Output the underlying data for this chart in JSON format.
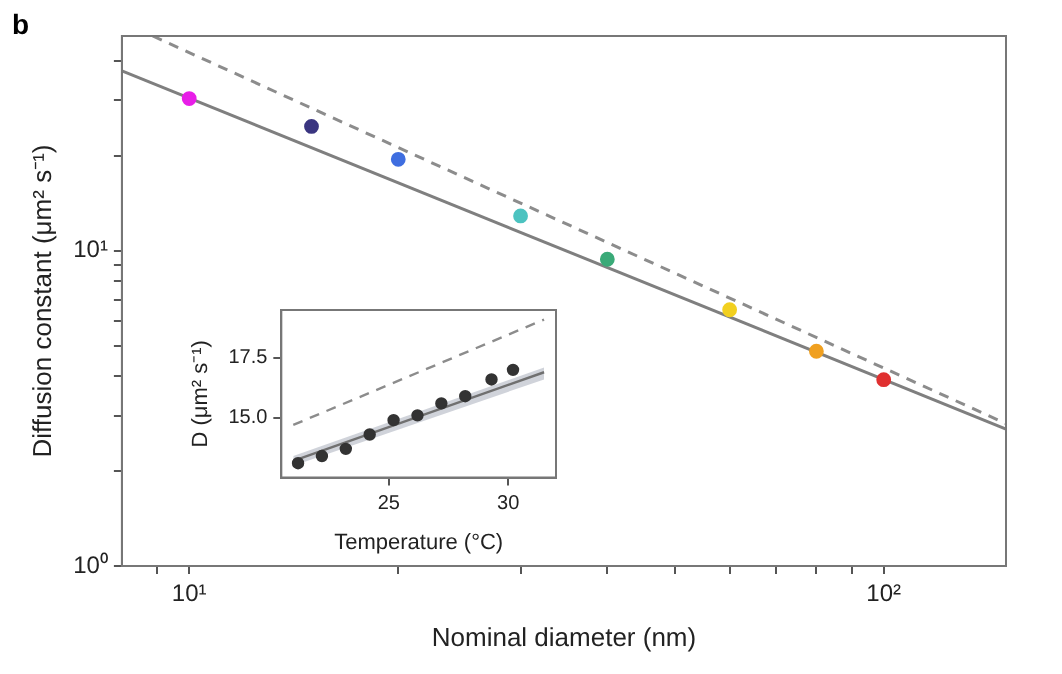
{
  "chart_data": [
    {
      "type": "scatter",
      "annotations": [
        "b"
      ],
      "xlabel": "Nominal diameter (nm)",
      "ylabel": "Diffusion constant (μm² s⁻¹)",
      "log": "xy",
      "xlim": [
        8,
        150
      ],
      "ylim": [
        1,
        48
      ],
      "xticks": [
        {
          "value": 9,
          "label": null
        },
        {
          "value": 10,
          "label": "10¹"
        },
        {
          "value": 20,
          "label": null
        },
        {
          "value": 30,
          "label": null
        },
        {
          "value": 40,
          "label": null
        },
        {
          "value": 50,
          "label": null
        },
        {
          "value": 60,
          "label": null
        },
        {
          "value": 70,
          "label": null
        },
        {
          "value": 80,
          "label": null
        },
        {
          "value": 90,
          "label": null
        },
        {
          "value": 100,
          "label": "10²"
        }
      ],
      "yticks": [
        {
          "value": 1,
          "label": "10⁰"
        },
        {
          "value": 2,
          "label": null
        },
        {
          "value": 3,
          "label": null
        },
        {
          "value": 4,
          "label": null
        },
        {
          "value": 5,
          "label": null
        },
        {
          "value": 6,
          "label": null
        },
        {
          "value": 7,
          "label": null
        },
        {
          "value": 8,
          "label": null
        },
        {
          "value": 9,
          "label": null
        },
        {
          "value": 10,
          "label": "10¹"
        },
        {
          "value": 20,
          "label": null
        },
        {
          "value": 30,
          "label": null
        },
        {
          "value": 40,
          "label": null
        }
      ],
      "grid": false,
      "legend": false,
      "series": [
        {
          "marker": "circle",
          "x": [
            10,
            15,
            20,
            30,
            40,
            60,
            80,
            100
          ],
          "values": [
            30.4,
            24.8,
            19.5,
            12.9,
            9.4,
            6.5,
            4.8,
            3.9
          ],
          "colors": [
            "#e81ee8",
            "#3a3580",
            "#3f6ee0",
            "#4cc3c0",
            "#3aaa78",
            "#f2d020",
            "#f0a020",
            "#e03030"
          ]
        },
        {
          "type": "line",
          "x": [
            8,
            150
          ],
          "values": [
            37.2,
            2.72
          ],
          "color": "#7f7f7f"
        },
        {
          "type": "line",
          "line_style": "dashed",
          "x": [
            8.86,
            150
          ],
          "values": [
            48,
            2.83
          ],
          "color": "#8c8c8c"
        }
      ]
    },
    {
      "type": "scatter",
      "xlabel": "Temperature (°C)",
      "ylabel": "D (μm² s⁻¹)",
      "xlim": [
        20.5,
        32
      ],
      "ylim": [
        12.5,
        19.5
      ],
      "xticks": [
        25,
        30
      ],
      "yticks": [
        {
          "value": 15,
          "label": "15.0"
        },
        {
          "value": 17.5,
          "label": "17.5"
        }
      ],
      "grid": false,
      "legend": false,
      "series": [
        {
          "type": "line",
          "x": [
            21,
            31.5
          ],
          "values": [
            13.2,
            16.9
          ],
          "lower": [
            13.0,
            16.6
          ],
          "upper": [
            13.4,
            17.1
          ],
          "color": "#707070"
        },
        {
          "type": "line",
          "line_style": "dashed",
          "x": [
            21,
            31.5
          ],
          "values": [
            14.7,
            19.1
          ],
          "color": "#8c8c8c"
        },
        {
          "marker": "circle",
          "x": [
            21.2,
            22.2,
            23.2,
            24.2,
            25.2,
            26.2,
            27.2,
            28.2,
            29.3,
            30.2
          ],
          "values": [
            13.1,
            13.4,
            13.7,
            14.3,
            14.9,
            15.1,
            15.6,
            15.9,
            16.6,
            17.0
          ],
          "color": "#333333"
        }
      ]
    }
  ]
}
